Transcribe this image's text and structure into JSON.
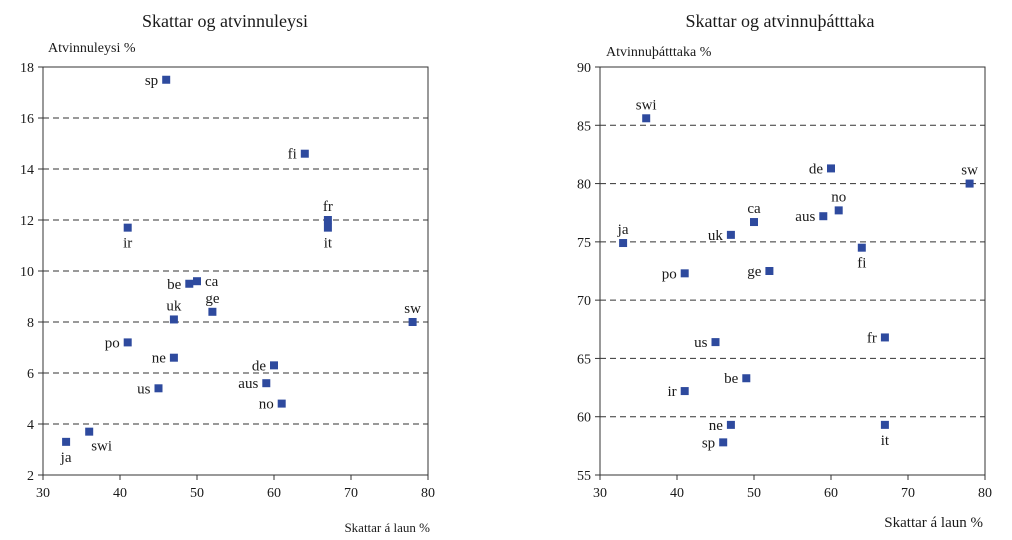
{
  "chart_data": [
    {
      "type": "scatter",
      "title": "Skattar og atvinnuleysi",
      "ylabel": "Atvinnuleysi %",
      "xlabel": "Skattar á laun %",
      "xlim": [
        30,
        80
      ],
      "ylim": [
        2,
        18
      ],
      "xticks": [
        30,
        40,
        50,
        60,
        70,
        80
      ],
      "yticks": [
        2,
        4,
        6,
        8,
        10,
        12,
        14,
        16,
        18
      ],
      "gridlines_y": [
        4,
        6,
        8,
        10,
        12,
        14,
        16
      ],
      "grid": "dashed horizontal",
      "marker_color": "#2e4a9e",
      "points": [
        {
          "label": "sp",
          "x": 46,
          "y": 17.5,
          "pos": "left"
        },
        {
          "label": "fi",
          "x": 64,
          "y": 14.6,
          "pos": "left"
        },
        {
          "label": "fr",
          "x": 67,
          "y": 12.0,
          "pos": "above"
        },
        {
          "label": "it",
          "x": 67,
          "y": 11.7,
          "pos": "below"
        },
        {
          "label": "ir",
          "x": 41,
          "y": 11.7,
          "pos": "below"
        },
        {
          "label": "ca",
          "x": 50,
          "y": 9.6,
          "pos": "right"
        },
        {
          "label": "be",
          "x": 49,
          "y": 9.5,
          "pos": "left"
        },
        {
          "label": "ge",
          "x": 52,
          "y": 8.4,
          "pos": "above"
        },
        {
          "label": "uk",
          "x": 47,
          "y": 8.1,
          "pos": "above"
        },
        {
          "label": "sw",
          "x": 78,
          "y": 8.0,
          "pos": "above"
        },
        {
          "label": "po",
          "x": 41,
          "y": 7.2,
          "pos": "left"
        },
        {
          "label": "ne",
          "x": 47,
          "y": 6.6,
          "pos": "left"
        },
        {
          "label": "de",
          "x": 60,
          "y": 6.3,
          "pos": "left"
        },
        {
          "label": "aus",
          "x": 59,
          "y": 5.6,
          "pos": "left"
        },
        {
          "label": "us",
          "x": 45,
          "y": 5.4,
          "pos": "left"
        },
        {
          "label": "no",
          "x": 61,
          "y": 4.8,
          "pos": "left"
        },
        {
          "label": "swi",
          "x": 36,
          "y": 3.7,
          "pos": "below-right"
        },
        {
          "label": "ja",
          "x": 33,
          "y": 3.3,
          "pos": "below"
        }
      ]
    },
    {
      "type": "scatter",
      "title": "Skattar og atvinnuþátttaka",
      "ylabel": "Atvinnuþátttaka %",
      "xlabel": "Skattar á laun %",
      "xlim": [
        30,
        80
      ],
      "ylim": [
        55,
        90
      ],
      "xticks": [
        30,
        40,
        50,
        60,
        70,
        80
      ],
      "yticks": [
        55,
        60,
        65,
        70,
        75,
        80,
        85,
        90
      ],
      "gridlines_y": [
        60,
        65,
        70,
        75,
        80,
        85
      ],
      "grid": "dashed horizontal",
      "marker_color": "#2e4a9e",
      "points": [
        {
          "label": "swi",
          "x": 36,
          "y": 85.6,
          "pos": "above"
        },
        {
          "label": "de",
          "x": 60,
          "y": 81.3,
          "pos": "left"
        },
        {
          "label": "sw",
          "x": 78,
          "y": 80.0,
          "pos": "above"
        },
        {
          "label": "no",
          "x": 61,
          "y": 77.7,
          "pos": "above"
        },
        {
          "label": "aus",
          "x": 59,
          "y": 77.2,
          "pos": "left"
        },
        {
          "label": "ca",
          "x": 50,
          "y": 76.7,
          "pos": "above"
        },
        {
          "label": "uk",
          "x": 47,
          "y": 75.6,
          "pos": "left"
        },
        {
          "label": "ja",
          "x": 33,
          "y": 74.9,
          "pos": "above"
        },
        {
          "label": "fi",
          "x": 64,
          "y": 74.5,
          "pos": "below"
        },
        {
          "label": "ge",
          "x": 52,
          "y": 72.5,
          "pos": "left"
        },
        {
          "label": "po",
          "x": 41,
          "y": 72.3,
          "pos": "left"
        },
        {
          "label": "fr",
          "x": 67,
          "y": 66.8,
          "pos": "left"
        },
        {
          "label": "us",
          "x": 45,
          "y": 66.4,
          "pos": "left"
        },
        {
          "label": "be",
          "x": 49,
          "y": 63.3,
          "pos": "left"
        },
        {
          "label": "ir",
          "x": 41,
          "y": 62.2,
          "pos": "left"
        },
        {
          "label": "ne",
          "x": 47,
          "y": 59.3,
          "pos": "left"
        },
        {
          "label": "it",
          "x": 67,
          "y": 59.3,
          "pos": "below"
        },
        {
          "label": "sp",
          "x": 46,
          "y": 57.8,
          "pos": "left"
        }
      ]
    }
  ]
}
